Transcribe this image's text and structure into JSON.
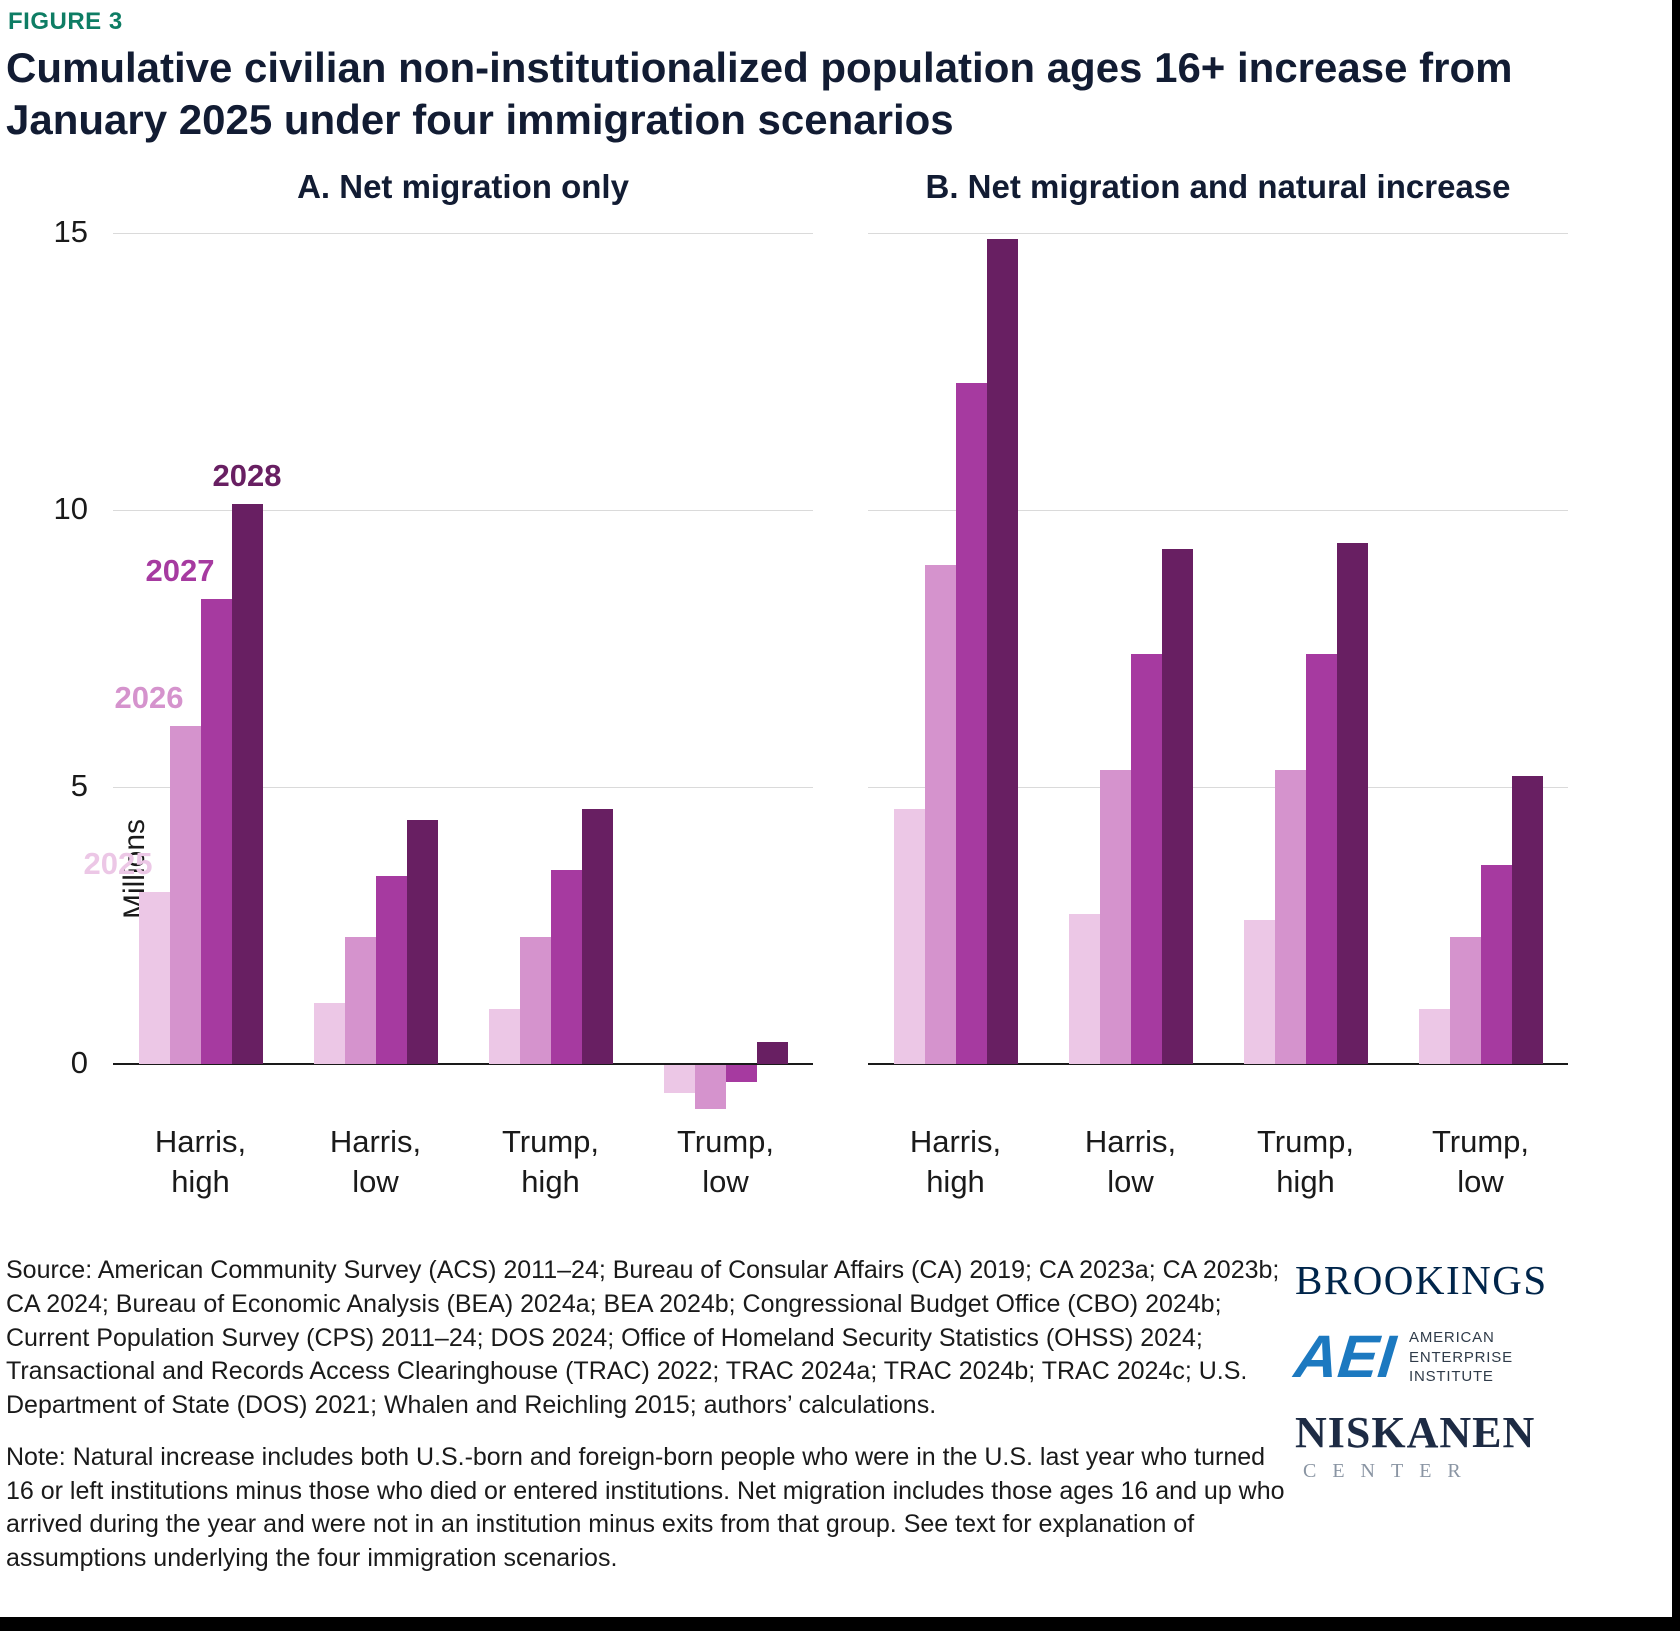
{
  "figure_label": "FIGURE 3",
  "title": "Cumulative civilian non-institutionalized population ages 16+ increase from January 2025 under four immigration scenarios",
  "ylabel": "Millions",
  "palette": {
    "2025": "#ecc7e6",
    "2026": "#d593cd",
    "2027": "#a63aa0",
    "2028": "#681f62"
  },
  "chart_data": [
    {
      "type": "bar",
      "title": "A. Net migration only",
      "categories": [
        [
          "Harris,",
          "high"
        ],
        [
          "Harris,",
          "low"
        ],
        [
          "Trump,",
          "high"
        ],
        [
          "Trump,",
          "low"
        ]
      ],
      "series": [
        {
          "name": "2025",
          "values": [
            3.1,
            1.1,
            1.0,
            -0.5
          ]
        },
        {
          "name": "2026",
          "values": [
            6.1,
            2.3,
            2.3,
            -0.8
          ]
        },
        {
          "name": "2027",
          "values": [
            8.4,
            3.4,
            3.5,
            -0.3
          ]
        },
        {
          "name": "2028",
          "values": [
            10.1,
            4.4,
            4.6,
            0.4
          ]
        }
      ],
      "ylabel": "Millions",
      "ylim": [
        -1.5,
        15
      ],
      "yticks": [
        0,
        5,
        10,
        15
      ],
      "grid": true,
      "annotations": [
        "2025",
        "2026",
        "2027",
        "2028"
      ]
    },
    {
      "type": "bar",
      "title": "B. Net migration and natural increase",
      "categories": [
        [
          "Harris,",
          "high"
        ],
        [
          "Harris,",
          "low"
        ],
        [
          "Trump,",
          "high"
        ],
        [
          "Trump,",
          "low"
        ]
      ],
      "series": [
        {
          "name": "2025",
          "values": [
            4.6,
            2.7,
            2.6,
            1.0
          ]
        },
        {
          "name": "2026",
          "values": [
            9.0,
            5.3,
            5.3,
            2.3
          ]
        },
        {
          "name": "2027",
          "values": [
            12.3,
            7.4,
            7.4,
            3.6
          ]
        },
        {
          "name": "2028",
          "values": [
            14.9,
            9.3,
            9.4,
            5.2
          ]
        }
      ],
      "ylim": [
        -1.5,
        15
      ],
      "yticks": [
        0,
        5,
        10,
        15
      ],
      "grid": true,
      "annotations": []
    }
  ],
  "source": "Source: American Community Survey (ACS) 2011–24; Bureau of Consular Affairs (CA) 2019; CA 2023a; CA 2023b; CA 2024; Bureau of Economic Analysis (BEA) 2024a; BEA 2024b; Congressional Budget Office (CBO) 2024b; Current Population Survey (CPS) 2011–24; DOS 2024; Office of Homeland Security Statistics (OHSS) 2024; Transactional and Records Access Clearinghouse (TRAC) 2022; TRAC 2024a; TRAC 2024b; TRAC 2024c; U.S. Department of State (DOS) 2021; Whalen and Reichling 2015; authors’ calculations.",
  "note": "Note: Natural increase includes both U.S.-born and foreign-born people who were in the U.S. last year who turned 16 or left institutions minus those who died or entered institutions. Net migration includes those ages 16 and up who arrived during the year and were not in an institution minus exits from that group. See text for explanation of assumptions underlying the four immigration scenarios.",
  "logos": {
    "brookings": "BROOKINGS",
    "aei": "AEI",
    "aei_lines": [
      "AMERICAN",
      "ENTERPRISE",
      "INSTITUTE"
    ],
    "niskanen": "NISKANEN",
    "niskanen_sub": "CENTER"
  }
}
